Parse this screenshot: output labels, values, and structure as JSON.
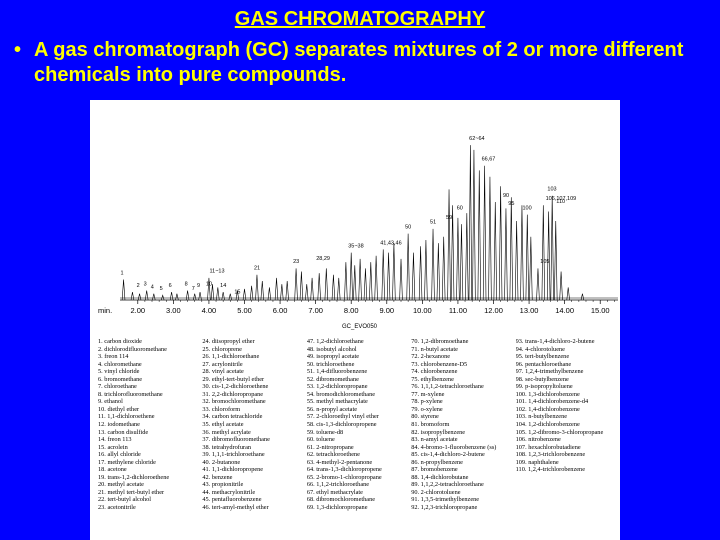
{
  "slide": {
    "title": "GAS CHROMATOGRAPHY",
    "bullet": "A gas chromatograph (GC) separates mixtures of 2 or more different chemicals into pure compounds."
  },
  "chart_data": {
    "type": "line",
    "title": "",
    "xlabel": "min.",
    "ylabel": "",
    "xlim": [
      1.5,
      15.5
    ],
    "x_ticks": [
      "2.00",
      "3.00",
      "4.00",
      "5.00",
      "6.00",
      "7.00",
      "8.00",
      "9.00",
      "10.00",
      "11.00",
      "12.00",
      "13.00",
      "14.00",
      "15.00"
    ],
    "tick_values": [
      2,
      3,
      4,
      5,
      6,
      7,
      8,
      9,
      10,
      11,
      12,
      13,
      14,
      15
    ],
    "caption": "GC_EVO050",
    "grid": false,
    "legend": "none",
    "peaks": [
      {
        "t": 1.6,
        "h": 0.13
      },
      {
        "t": 1.85,
        "h": 0.05
      },
      {
        "t": 2.05,
        "h": 0.04
      },
      {
        "t": 2.25,
        "h": 0.06
      },
      {
        "t": 2.45,
        "h": 0.04
      },
      {
        "t": 2.7,
        "h": 0.03
      },
      {
        "t": 2.95,
        "h": 0.05
      },
      {
        "t": 3.1,
        "h": 0.04
      },
      {
        "t": 3.4,
        "h": 0.06
      },
      {
        "t": 3.6,
        "h": 0.04
      },
      {
        "t": 3.75,
        "h": 0.05
      },
      {
        "t": 4.0,
        "h": 0.14
      },
      {
        "t": 4.1,
        "h": 0.1
      },
      {
        "t": 4.25,
        "h": 0.08
      },
      {
        "t": 4.4,
        "h": 0.05
      },
      {
        "t": 4.6,
        "h": 0.04
      },
      {
        "t": 4.8,
        "h": 0.06
      },
      {
        "t": 5.0,
        "h": 0.07
      },
      {
        "t": 5.2,
        "h": 0.09
      },
      {
        "t": 5.35,
        "h": 0.16
      },
      {
        "t": 5.5,
        "h": 0.12
      },
      {
        "t": 5.7,
        "h": 0.08
      },
      {
        "t": 5.9,
        "h": 0.14
      },
      {
        "t": 6.05,
        "h": 0.1
      },
      {
        "t": 6.2,
        "h": 0.12
      },
      {
        "t": 6.45,
        "h": 0.2
      },
      {
        "t": 6.6,
        "h": 0.18
      },
      {
        "t": 6.75,
        "h": 0.1
      },
      {
        "t": 6.9,
        "h": 0.14
      },
      {
        "t": 7.1,
        "h": 0.17
      },
      {
        "t": 7.3,
        "h": 0.2
      },
      {
        "t": 7.5,
        "h": 0.16
      },
      {
        "t": 7.65,
        "h": 0.14
      },
      {
        "t": 7.85,
        "h": 0.24
      },
      {
        "t": 8.0,
        "h": 0.3
      },
      {
        "t": 8.1,
        "h": 0.22
      },
      {
        "t": 8.25,
        "h": 0.26
      },
      {
        "t": 8.4,
        "h": 0.2
      },
      {
        "t": 8.55,
        "h": 0.24
      },
      {
        "t": 8.7,
        "h": 0.28
      },
      {
        "t": 8.9,
        "h": 0.32
      },
      {
        "t": 9.05,
        "h": 0.3
      },
      {
        "t": 9.2,
        "h": 0.36
      },
      {
        "t": 9.4,
        "h": 0.26
      },
      {
        "t": 9.6,
        "h": 0.42
      },
      {
        "t": 9.75,
        "h": 0.3
      },
      {
        "t": 9.95,
        "h": 0.34
      },
      {
        "t": 10.1,
        "h": 0.38
      },
      {
        "t": 10.3,
        "h": 0.45
      },
      {
        "t": 10.45,
        "h": 0.36
      },
      {
        "t": 10.6,
        "h": 0.4
      },
      {
        "t": 10.75,
        "h": 0.7
      },
      {
        "t": 10.85,
        "h": 0.6
      },
      {
        "t": 11.0,
        "h": 0.52
      },
      {
        "t": 11.1,
        "h": 0.48
      },
      {
        "t": 11.25,
        "h": 0.55
      },
      {
        "t": 11.35,
        "h": 0.98
      },
      {
        "t": 11.45,
        "h": 0.95
      },
      {
        "t": 11.6,
        "h": 0.82
      },
      {
        "t": 11.75,
        "h": 0.85
      },
      {
        "t": 11.9,
        "h": 0.78
      },
      {
        "t": 12.05,
        "h": 0.62
      },
      {
        "t": 12.2,
        "h": 0.72
      },
      {
        "t": 12.35,
        "h": 0.58
      },
      {
        "t": 12.5,
        "h": 0.65
      },
      {
        "t": 12.65,
        "h": 0.5
      },
      {
        "t": 12.8,
        "h": 0.6
      },
      {
        "t": 12.95,
        "h": 0.54
      },
      {
        "t": 13.05,
        "h": 0.4
      },
      {
        "t": 13.25,
        "h": 0.2
      },
      {
        "t": 13.4,
        "h": 0.6
      },
      {
        "t": 13.55,
        "h": 0.56
      },
      {
        "t": 13.65,
        "h": 0.66
      },
      {
        "t": 13.75,
        "h": 0.5
      },
      {
        "t": 13.9,
        "h": 0.18
      },
      {
        "t": 14.1,
        "h": 0.08
      },
      {
        "t": 14.5,
        "h": 0.04
      }
    ],
    "peak_labels": [
      {
        "text": "1",
        "t": 1.6,
        "h": 0.15
      },
      {
        "text": "2",
        "t": 2.05,
        "h": 0.07
      },
      {
        "text": "3",
        "t": 2.25,
        "h": 0.08
      },
      {
        "text": "4",
        "t": 2.45,
        "h": 0.06
      },
      {
        "text": "5",
        "t": 2.7,
        "h": 0.05
      },
      {
        "text": "6",
        "t": 2.95,
        "h": 0.07
      },
      {
        "text": "8",
        "t": 3.4,
        "h": 0.08
      },
      {
        "text": "7",
        "t": 3.6,
        "h": 0.05
      },
      {
        "text": "9",
        "t": 3.75,
        "h": 0.07
      },
      {
        "text": "10",
        "t": 4.0,
        "h": 0.08
      },
      {
        "text": "11~13",
        "t": 4.1,
        "h": 0.16
      },
      {
        "text": "14",
        "t": 4.4,
        "h": 0.07
      },
      {
        "text": "15",
        "t": 4.8,
        "h": 0.03
      },
      {
        "text": "21",
        "t": 5.35,
        "h": 0.18
      },
      {
        "text": "23",
        "t": 6.45,
        "h": 0.22
      },
      {
        "text": "28,29",
        "t": 7.1,
        "h": 0.24
      },
      {
        "text": "35~38",
        "t": 8.0,
        "h": 0.32
      },
      {
        "text": "41,43,46",
        "t": 8.9,
        "h": 0.34
      },
      {
        "text": "50",
        "t": 9.6,
        "h": 0.44
      },
      {
        "text": "51",
        "t": 10.3,
        "h": 0.47
      },
      {
        "text": "59",
        "t": 10.75,
        "h": 0.5
      },
      {
        "text": "60",
        "t": 11.05,
        "h": 0.56
      },
      {
        "text": "62~64",
        "t": 11.4,
        "h": 1.0
      },
      {
        "text": "66,67",
        "t": 11.75,
        "h": 0.87
      },
      {
        "text": "90",
        "t": 12.35,
        "h": 0.64
      },
      {
        "text": "95",
        "t": 12.5,
        "h": 0.59
      },
      {
        "text": "100",
        "t": 12.9,
        "h": 0.56
      },
      {
        "text": "103",
        "t": 13.6,
        "h": 0.68
      },
      {
        "text": "106,107,109",
        "t": 13.55,
        "h": 0.62
      },
      {
        "text": "110",
        "t": 13.85,
        "h": 0.6
      },
      {
        "text": "105",
        "t": 13.4,
        "h": 0.22
      }
    ]
  },
  "legend_columns": [
    [
      "1. carbon dioxide",
      "2. dichlorodifluoromethane",
      "3. freon 114",
      "4. chloromethane",
      "5. vinyl chloride",
      "6. bromomethane",
      "7. chloroethane",
      "8. trichlorofluoromethane",
      "9. ethanol",
      "10. diethyl ether",
      "11. 1,1-dichloroethene",
      "12. iodomethane",
      "13. carbon disulfide",
      "14. freon 113",
      "15. acrolein",
      "16. allyl chloride",
      "17. methylene chloride",
      "18. acetone",
      "19. trans-1,2-dichloroethene",
      "20. methyl acetate",
      "21. methyl tert-butyl ether",
      "22. tert-butyl alcohol",
      "23. acetonitrile"
    ],
    [
      "24. diisopropyl ether",
      "25. chloroprene",
      "26. 1,1-dichloroethane",
      "27. acrylonitrile",
      "28. vinyl acetate",
      "29. ethyl-tert-butyl ether",
      "30. cis-1,2-dichloroethene",
      "31. 2,2-dichloropropane",
      "32. bromochloromethane",
      "33. chloroform",
      "34. carbon tetrachloride",
      "35. ethyl acetate",
      "36. methyl acrylate",
      "37. dibromofluoromethane",
      "38. tetrahydrofuran",
      "39. 1,1,1-trichloroethane",
      "40. 2-butanone",
      "41. 1,1-dichloropropene",
      "42. benzene",
      "43. propionitrile",
      "44. methacrylonitrile",
      "45. pentafluorobenzene",
      "46. tert-amyl-methyl ether"
    ],
    [
      "47. 1,2-dichloroethane",
      "48. isobutyl alcohol",
      "49. isopropyl acetate",
      "50. trichloroethene",
      "51. 1,4-difluorobenzene",
      "52. dibromomethane",
      "53. 1,2-dichloropropane",
      "54. bromodichloromethane",
      "55. methyl methacrylate",
      "56. n-propyl acetate",
      "57. 2-chloroethyl vinyl ether",
      "58. cis-1,3-dichloropropene",
      "59. toluene-d8",
      "60. toluene",
      "61. 2-nitropropane",
      "62. tetrachloroethene",
      "63. 4-methyl-2-pentanone",
      "64. trans-1,3-dichloropropene",
      "65. 2-bromo-1-chloropropane",
      "66. 1,1,2-trichloroethane",
      "67. ethyl methacrylate",
      "68. dibromochloromethane",
      "69. 1,3-dichloropropane"
    ],
    [
      "70. 1,2-dibromoethane",
      "71. n-butyl acetate",
      "72. 2-hexanone",
      "73. chlorobenzene-D5",
      "74. chlorobenzene",
      "75. ethylbenzene",
      "76. 1,1,1,2-tetrachloroethane",
      "77. m-xylene",
      "78. p-xylene",
      "79. o-xylene",
      "80. styrene",
      "81. bromoform",
      "82. isopropylbenzene",
      "83. n-amyl acetate",
      "84. 4-bromo-1-fluorobenzene (ss)",
      "85. cis-1,4-dichloro-2-butene",
      "86. n-propylbenzene",
      "87. bromobenzene",
      "88. 1,4-dichlorobutane",
      "89. 1,1,2,2-tetrachloroethane",
      "90. 2-chlorotoluene",
      "91. 1,3,5-trimethylbenzene",
      "92. 1,2,3-trichloropropane"
    ],
    [
      "93. trans-1,4-dichloro-2-butene",
      "94. 4-chlorotoluene",
      "95. tert-butylbenzene",
      "96. pentachloroethane",
      "97. 1,2,4-trimethylbenzene",
      "98. sec-butylbenzene",
      "99. p-isopropyltoluene",
      "100. 1,3-dichlorobenzene",
      "101. 1,4-dichlorobenzene-d4",
      "102. 1,4-dichlorobenzene",
      "103. n-butylbenzene",
      "104. 1,2-dichlorobenzene",
      "105. 1,2-dibromo-3-chloropropane",
      "106. nitrobenzene",
      "107. hexachlorobutadiene",
      "108. 1,2,3-trichlorobenzene",
      "109. naphthalene",
      "110. 1,2,4-trichlorobenzene"
    ]
  ]
}
